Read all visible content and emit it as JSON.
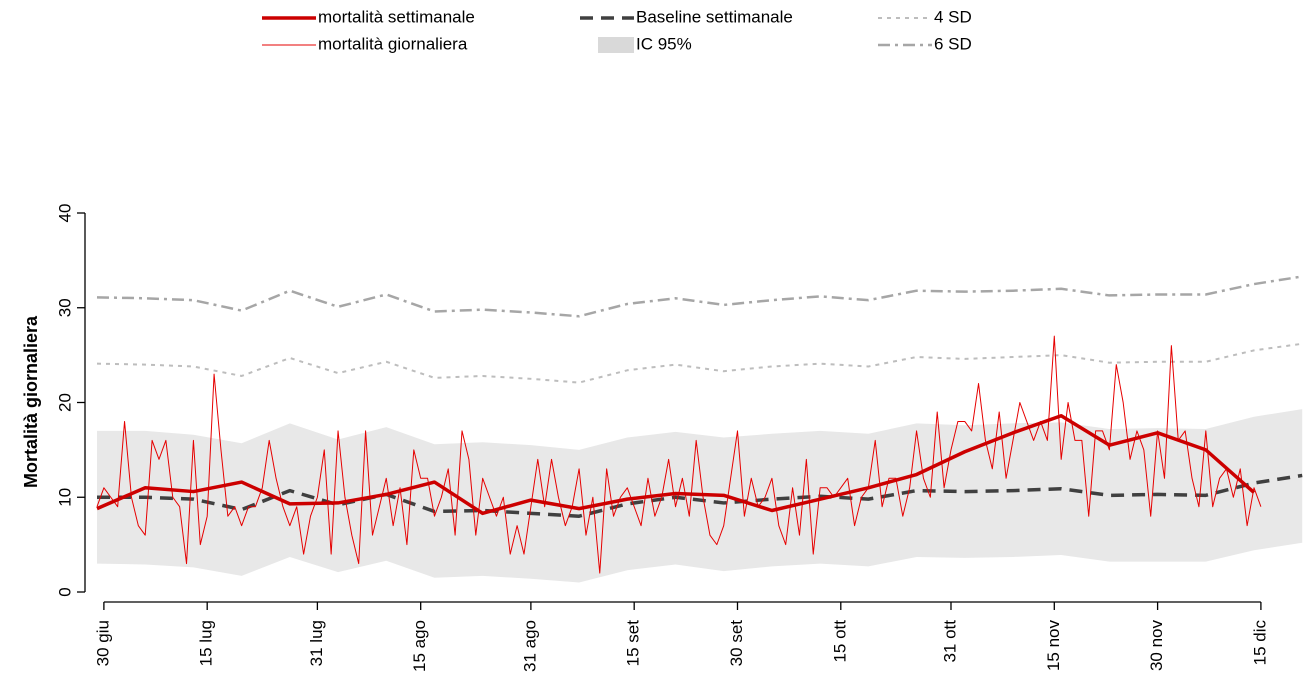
{
  "chart_data": {
    "type": "line",
    "y_label": "Mortalità giornaliera",
    "xlim": [
      -1,
      176
    ],
    "xticks": [
      {
        "value": 0,
        "label": "30 giu"
      },
      {
        "value": 15,
        "label": "15 lug"
      },
      {
        "value": 31,
        "label": "31 lug"
      },
      {
        "value": 46,
        "label": "15 ago"
      },
      {
        "value": 62,
        "label": "31 ago"
      },
      {
        "value": 77,
        "label": "15 set"
      },
      {
        "value": 92,
        "label": "30 set"
      },
      {
        "value": 107,
        "label": "15 ott"
      },
      {
        "value": 123,
        "label": "31 ott"
      },
      {
        "value": 138,
        "label": "15 nov"
      },
      {
        "value": 153,
        "label": "30 nov"
      },
      {
        "value": 168,
        "label": "15 dic"
      }
    ],
    "ylim": [
      0,
      40
    ],
    "yticks": [
      0,
      10,
      20,
      30,
      40
    ],
    "series": [
      {
        "name": "mortalità settimanale",
        "kind": "line",
        "color": "#cc0000",
        "width": 3.5,
        "dash": "none",
        "x": [
          -1,
          6,
          13,
          20,
          27,
          34,
          41,
          48,
          55,
          62,
          69,
          76,
          83,
          90,
          97,
          104,
          111,
          118,
          125,
          132,
          139,
          146,
          153,
          160,
          167
        ],
        "values": [
          8.8,
          11.0,
          10.6,
          11.6,
          9.3,
          9.4,
          10.3,
          11.6,
          8.3,
          9.7,
          8.8,
          9.8,
          10.4,
          10.2,
          8.6,
          9.8,
          11.0,
          12.4,
          14.8,
          16.8,
          18.6,
          15.5,
          16.8,
          15.0,
          10.5
        ]
      },
      {
        "name": "mortalità giornaliera",
        "kind": "line",
        "color": "#e60000",
        "width": 1,
        "dash": "none",
        "x": [
          -1,
          0,
          1,
          2,
          3,
          4,
          5,
          6,
          7,
          8,
          9,
          10,
          11,
          12,
          13,
          14,
          15,
          16,
          17,
          18,
          19,
          20,
          21,
          22,
          23,
          24,
          25,
          26,
          27,
          28,
          29,
          30,
          31,
          32,
          33,
          34,
          35,
          36,
          37,
          38,
          39,
          40,
          41,
          42,
          43,
          44,
          45,
          46,
          47,
          48,
          49,
          50,
          51,
          52,
          53,
          54,
          55,
          56,
          57,
          58,
          59,
          60,
          61,
          62,
          63,
          64,
          65,
          66,
          67,
          68,
          69,
          70,
          71,
          72,
          73,
          74,
          75,
          76,
          77,
          78,
          79,
          80,
          81,
          82,
          83,
          84,
          85,
          86,
          87,
          88,
          89,
          90,
          91,
          92,
          93,
          94,
          95,
          96,
          97,
          98,
          99,
          100,
          101,
          102,
          103,
          104,
          105,
          106,
          107,
          108,
          109,
          110,
          111,
          112,
          113,
          114,
          115,
          116,
          117,
          118,
          119,
          120,
          121,
          122,
          123,
          124,
          125,
          126,
          127,
          128,
          129,
          130,
          131,
          132,
          133,
          134,
          135,
          136,
          137,
          138,
          139,
          140,
          141,
          142,
          143,
          144,
          145,
          146,
          147,
          148,
          149,
          150,
          151,
          152,
          153,
          154,
          155,
          156,
          157,
          158,
          159,
          160,
          161,
          162,
          163,
          164,
          165,
          166,
          167,
          168
        ],
        "values": [
          9,
          11,
          10,
          9,
          18,
          10,
          7,
          6,
          16,
          14,
          16,
          10,
          9,
          3,
          16,
          5,
          8,
          23,
          15,
          8,
          9,
          7,
          9,
          9,
          11,
          16,
          12,
          9,
          7,
          9,
          4,
          8,
          10,
          15,
          4,
          17,
          10,
          6,
          3,
          17,
          6,
          9,
          12,
          7,
          11,
          5,
          15,
          12,
          12,
          8,
          10,
          13,
          6,
          17,
          14,
          6,
          12,
          10,
          8,
          10,
          4,
          7,
          4,
          9,
          14,
          9,
          14,
          10,
          7,
          9,
          13,
          6,
          10,
          2,
          13,
          8,
          10,
          11,
          9,
          7,
          12,
          8,
          10,
          14,
          9,
          12,
          8,
          16,
          10,
          6,
          5,
          7,
          12,
          17,
          8,
          12,
          9,
          10,
          12,
          7,
          5,
          11,
          6,
          14,
          4,
          11,
          11,
          10,
          11,
          12,
          7,
          10,
          11,
          16,
          9,
          12,
          12,
          8,
          11,
          17,
          12,
          10,
          19,
          11,
          15,
          18,
          18,
          17,
          22,
          16,
          13,
          19,
          12,
          16,
          20,
          18,
          16,
          18,
          16,
          27,
          14,
          20,
          16,
          16,
          8,
          17,
          17,
          15,
          24,
          20,
          14,
          17,
          15,
          8,
          17,
          12,
          26,
          16,
          17,
          12,
          9,
          17,
          9,
          12,
          13,
          10,
          13,
          7,
          11,
          9
        ]
      },
      {
        "name": "Baseline settimanale",
        "kind": "line",
        "color": "#404040",
        "width": 3.5,
        "dash": "13 8",
        "x": [
          -1,
          6,
          13,
          20,
          27,
          34,
          41,
          48,
          55,
          62,
          69,
          76,
          83,
          90,
          97,
          104,
          111,
          118,
          125,
          132,
          139,
          146,
          153,
          160,
          167,
          174
        ],
        "values": [
          10.0,
          10.0,
          9.8,
          8.7,
          10.7,
          9.2,
          10.3,
          8.5,
          8.6,
          8.3,
          8.0,
          9.3,
          10.0,
          9.4,
          9.8,
          10.1,
          9.8,
          10.7,
          10.6,
          10.7,
          10.9,
          10.2,
          10.3,
          10.2,
          11.5,
          12.3
        ]
      },
      {
        "name": "IC 95%",
        "kind": "band",
        "color": "#e8e8e8",
        "x": [
          -1,
          6,
          13,
          20,
          27,
          34,
          41,
          48,
          55,
          62,
          69,
          76,
          83,
          90,
          97,
          104,
          111,
          118,
          125,
          132,
          139,
          146,
          153,
          160,
          167,
          174
        ],
        "lower": [
          3.0,
          2.9,
          2.6,
          1.7,
          3.7,
          2.1,
          3.3,
          1.5,
          1.7,
          1.4,
          1.0,
          2.3,
          2.9,
          2.2,
          2.7,
          3.0,
          2.7,
          3.7,
          3.6,
          3.7,
          3.9,
          3.2,
          3.2,
          3.2,
          4.4,
          5.2
        ],
        "upper": [
          17.0,
          17.0,
          16.6,
          15.7,
          17.8,
          16.1,
          17.4,
          15.6,
          15.8,
          15.5,
          15.0,
          16.3,
          16.9,
          16.3,
          16.7,
          17.0,
          16.7,
          17.8,
          17.6,
          17.8,
          17.9,
          17.2,
          17.3,
          17.2,
          18.5,
          19.3
        ]
      },
      {
        "name": "4 SD",
        "kind": "line",
        "color": "#bdbdbd",
        "width": 2,
        "dash": "4 5",
        "x": [
          -1,
          6,
          13,
          20,
          27,
          34,
          41,
          48,
          55,
          62,
          69,
          76,
          83,
          90,
          97,
          104,
          111,
          118,
          125,
          132,
          139,
          146,
          153,
          160,
          167,
          174
        ],
        "values": [
          24.1,
          24.0,
          23.8,
          22.8,
          24.7,
          23.1,
          24.3,
          22.6,
          22.8,
          22.5,
          22.1,
          23.4,
          24.0,
          23.3,
          23.8,
          24.1,
          23.8,
          24.8,
          24.6,
          24.8,
          25.0,
          24.2,
          24.3,
          24.3,
          25.5,
          26.2
        ]
      },
      {
        "name": "6 SD",
        "kind": "line",
        "color": "#a6a6a6",
        "width": 2.5,
        "dash": "12 5 3 5",
        "x": [
          -1,
          6,
          13,
          20,
          27,
          34,
          41,
          48,
          55,
          62,
          69,
          76,
          83,
          90,
          97,
          104,
          111,
          118,
          125,
          132,
          139,
          146,
          153,
          160,
          167,
          174
        ],
        "values": [
          31.1,
          31.0,
          30.8,
          29.7,
          31.8,
          30.1,
          31.4,
          29.6,
          29.8,
          29.5,
          29.1,
          30.4,
          31.0,
          30.3,
          30.8,
          31.2,
          30.8,
          31.8,
          31.7,
          31.8,
          32.0,
          31.3,
          31.4,
          31.4,
          32.5,
          33.3
        ]
      }
    ]
  }
}
